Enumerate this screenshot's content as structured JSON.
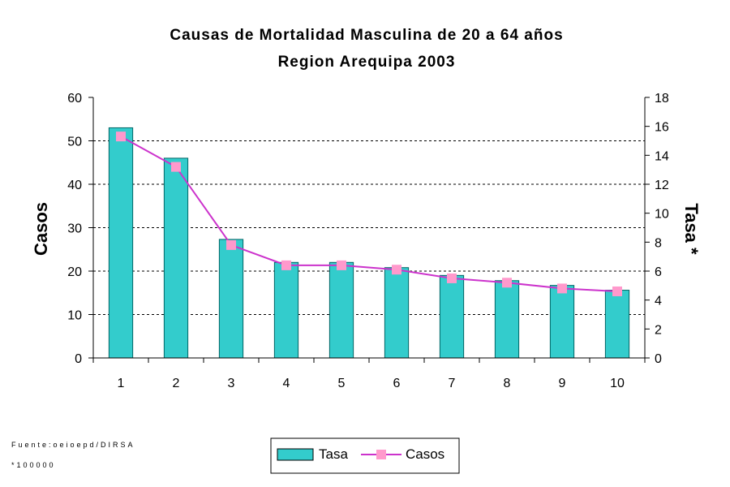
{
  "chart_data": {
    "type": "bar",
    "title": "Causas de Mortalidad Masculina de 20 a 64 años",
    "subtitle": "Region Arequipa 2003",
    "categories": [
      "1",
      "2",
      "3",
      "4",
      "5",
      "6",
      "7",
      "8",
      "9",
      "10"
    ],
    "series": [
      {
        "name": "Tasa",
        "type": "bar",
        "axis": "left",
        "color": "#33CCCC",
        "values": [
          53,
          46,
          27.3,
          22,
          22,
          20.8,
          19,
          17.8,
          16.7,
          15.6
        ]
      },
      {
        "name": "Casos",
        "type": "line",
        "axis": "right",
        "color": "#CC33CC",
        "marker_color": "#FF99CC",
        "values": [
          15.3,
          13.2,
          7.8,
          6.4,
          6.4,
          6.1,
          5.5,
          5.2,
          4.8,
          4.6
        ]
      }
    ],
    "ylabel": "Casos",
    "ylabel_right": "Tasa *",
    "ylim": [
      0,
      60
    ],
    "ylim_right": [
      0,
      18
    ],
    "yticks": [
      "0",
      "10",
      "20",
      "30",
      "40",
      "50",
      "60"
    ],
    "yticks_right": [
      "0",
      "2",
      "4",
      "6",
      "8",
      "10",
      "12",
      "14",
      "16",
      "18"
    ],
    "grid": true,
    "legend_position": "bottom-center"
  },
  "notes": {
    "source": "Fuente:oeioepd/DIRSA",
    "footnote": "*100000"
  }
}
